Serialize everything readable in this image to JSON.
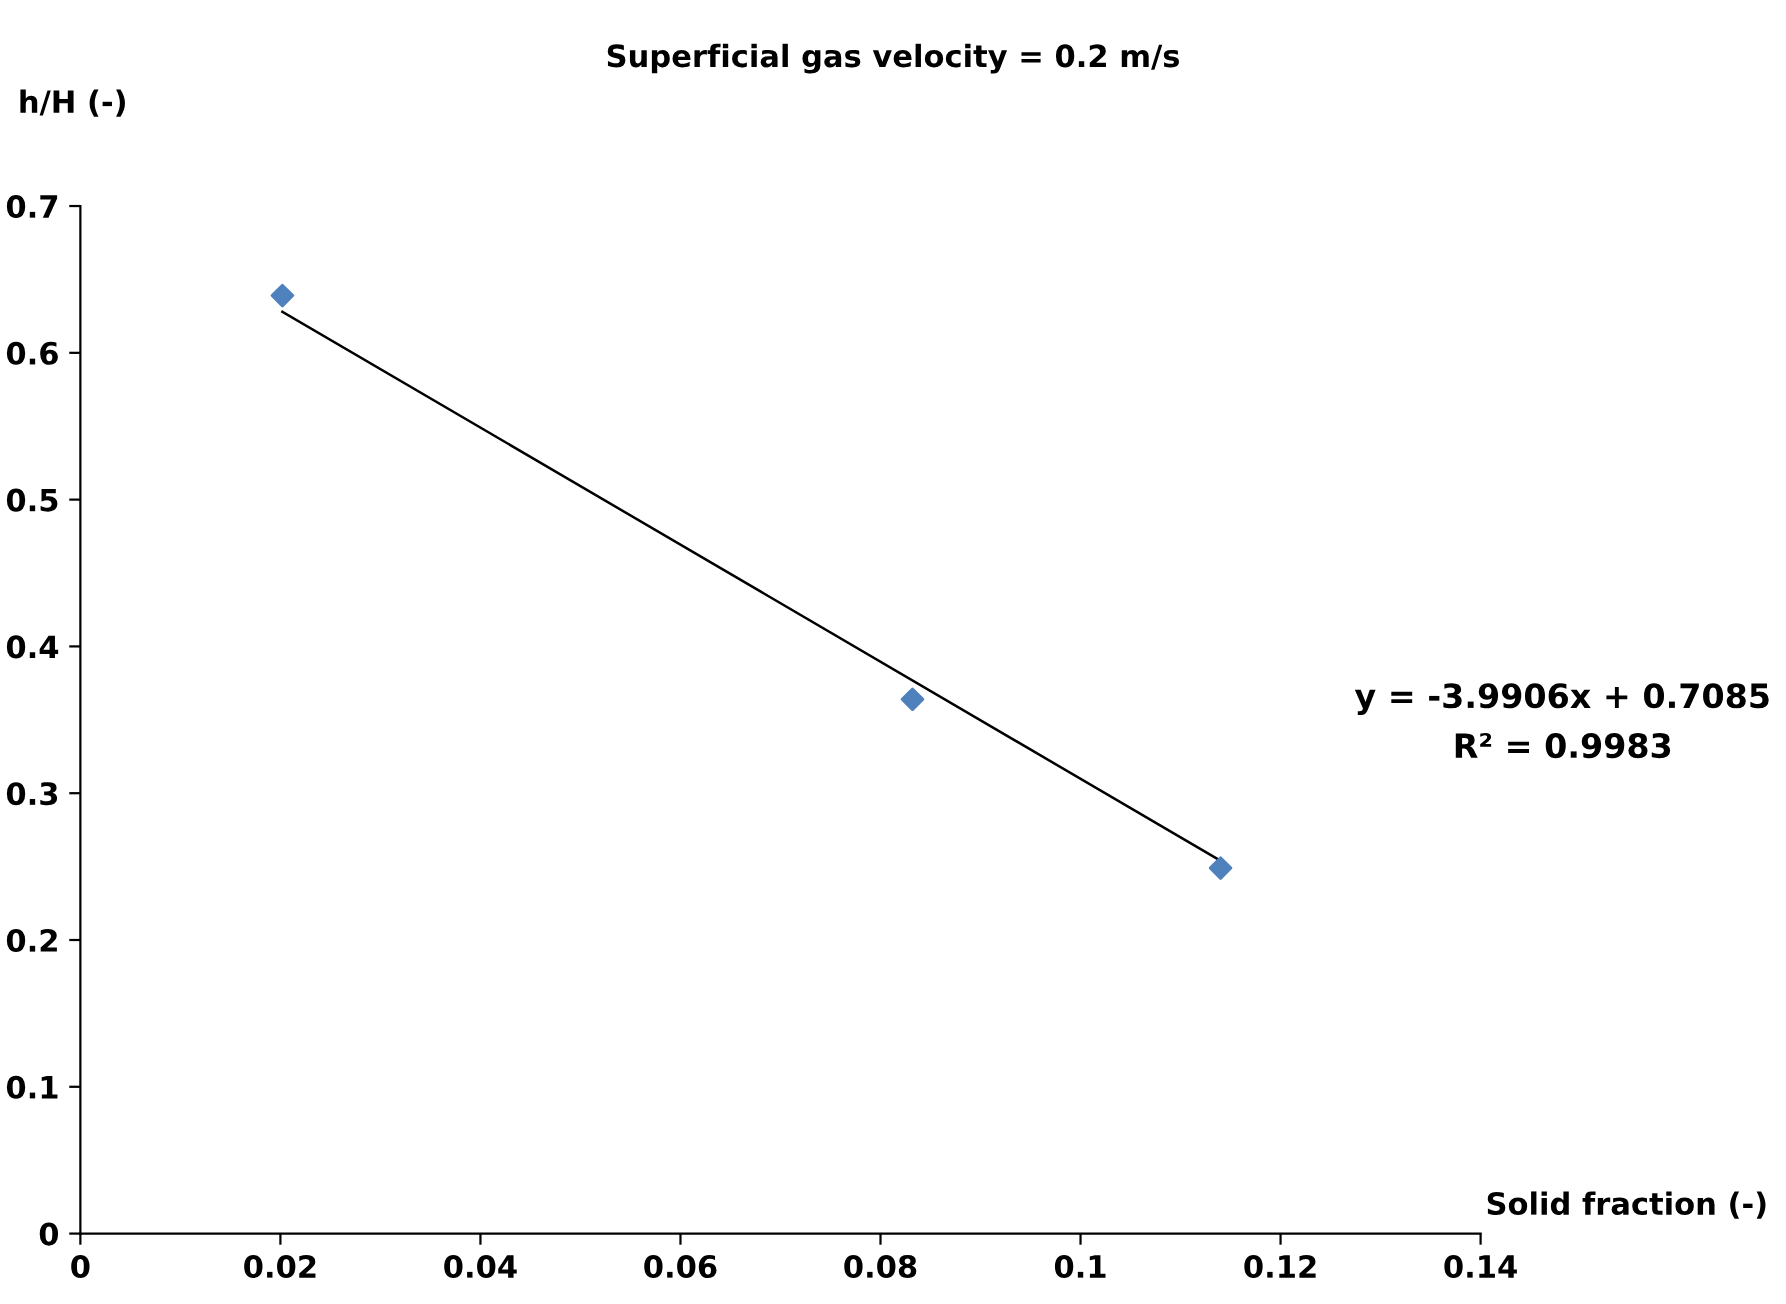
{
  "chart_data": {
    "type": "scatter",
    "title": "Superficial gas velocity = 0.2 m/s",
    "xlabel": "Solid fraction (-)",
    "ylabel": "h/H (-)",
    "x": [
      0.0202,
      0.0832,
      0.114
    ],
    "series": [
      {
        "color": "#4f81bd",
        "marker": "diamond",
        "values": [
          0.639,
          0.364,
          0.249
        ]
      },
      {
        "type": "line",
        "color": "#000000",
        "line_style": "solid",
        "marker": "none",
        "x": [
          0.0202,
          0.114
        ],
        "values": [
          0.628,
          0.254
        ]
      }
    ],
    "annotations": [
      "y = -3.9906x + 0.7085",
      "R² = 0.9983"
    ],
    "xlim": [
      0,
      0.14
    ],
    "xticks": [
      0,
      0.02,
      0.04,
      0.06,
      0.08,
      0.1,
      0.12,
      0.14
    ],
    "ylim": [
      0,
      0.7
    ],
    "yticks": [
      0,
      0.1,
      0.2,
      0.3,
      0.4,
      0.5,
      0.6,
      0.7
    ],
    "grid": false,
    "legend": false
  }
}
